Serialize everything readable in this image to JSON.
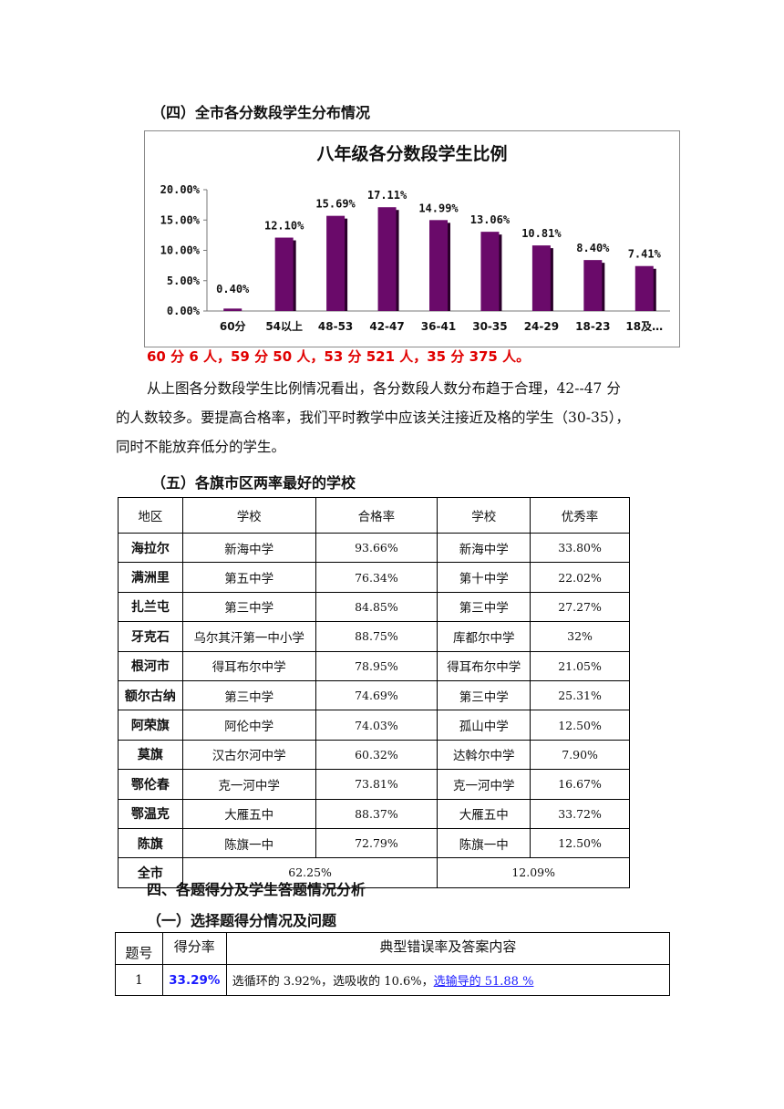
{
  "section4_heading": "（四）全市各分数段学生分布情况",
  "chart_data": {
    "type": "bar",
    "title": "八年级各分数段学生比例",
    "categories": [
      "60分",
      "54以上",
      "48-53",
      "42-47",
      "36-41",
      "30-35",
      "24-29",
      "18-23",
      "18及…"
    ],
    "values": [
      0.4,
      12.1,
      15.69,
      17.11,
      14.99,
      13.06,
      10.81,
      8.4,
      7.41
    ],
    "value_labels": [
      "0.40%",
      "12.10%",
      "15.69%",
      "17.11%",
      "14.99%",
      "13.06%",
      "10.81%",
      "8.40%",
      "7.41%"
    ],
    "yticks": [
      "0.00%",
      "5.00%",
      "10.00%",
      "15.00%",
      "20.00%"
    ],
    "ylim": [
      0,
      20
    ],
    "xlabel": "",
    "ylabel": "",
    "bar_color": "#6a0a6a",
    "grid": false,
    "legend": false
  },
  "red_note": "60 分 6 人，59 分 50 人，53 分 521 人，35 分 375 人。",
  "paragraph_lines": [
    "从上图各分数段学生比例情况看出，各分数段人数分布趋于合理，42--47 分",
    "的人数较多。要提高合格率，我们平时教学中应该关注接近及格的学生（30-35），",
    "同时不能放弃低分的学生。"
  ],
  "section5_heading": "（五）各旗市区两率最好的学校",
  "table1": {
    "headers": [
      "地区",
      "学校",
      "合格率",
      "学校",
      "优秀率"
    ],
    "rows": [
      [
        "海拉尔",
        "新海中学",
        "93.66%",
        "新海中学",
        "33.80%"
      ],
      [
        "满洲里",
        "第五中学",
        "76.34%",
        "第十中学",
        "22.02%"
      ],
      [
        "扎兰屯",
        "第三中学",
        "84.85%",
        "第三中学",
        "27.27%"
      ],
      [
        "牙克石",
        "乌尔其汗第一中小学",
        "88.75%",
        "库都尔中学",
        "32%"
      ],
      [
        "根河市",
        "得耳布尔中学",
        "78.95%",
        "得耳布尔中学",
        "21.05%"
      ],
      [
        "额尔古纳",
        "第三中学",
        "74.69%",
        "第三中学",
        "25.31%"
      ],
      [
        "阿荣旗",
        "阿伦中学",
        "74.03%",
        "孤山中学",
        "12.50%"
      ],
      [
        "莫旗",
        "汉古尔河中学",
        "60.32%",
        "达斡尔中学",
        "7.90%"
      ],
      [
        "鄂伦春",
        "克一河中学",
        "73.81%",
        "克一河中学",
        "16.67%"
      ],
      [
        "鄂温克",
        "大雁五中",
        "88.37%",
        "大雁五中",
        "33.72%"
      ],
      [
        "陈旗",
        "陈旗一中",
        "72.79%",
        "陈旗一中",
        "12.50%"
      ]
    ],
    "total": {
      "region": "全市",
      "pass_rate": "62.25%",
      "excellent_rate": "12.09%"
    }
  },
  "part4_heading": "四、各题得分及学生答题情况分析",
  "part4_sub_heading": "（一）选择题得分情况及问题",
  "table2": {
    "headers": [
      "题号",
      "得分率",
      "典型错误率及答案内容"
    ],
    "row": {
      "num": "1",
      "score": "33.29%",
      "text_plain": "选循环的 3.92%，选吸收的 10.6%，",
      "text_link": "选输导的 51.88 %"
    }
  }
}
